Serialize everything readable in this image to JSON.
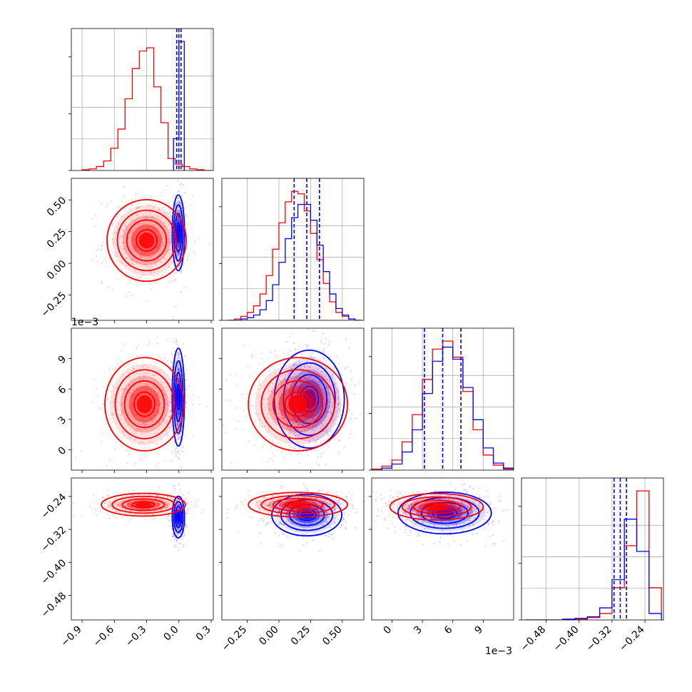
{
  "chart_data": {
    "type": "corner",
    "title": "",
    "series": [
      {
        "color": "#ff0000"
      },
      {
        "color": "#0000ff"
      }
    ],
    "quantiles_color": "#0000ff",
    "params": [
      {
        "range": [
          -1.0,
          0.32
        ],
        "ticks": [
          -0.9,
          -0.6,
          -0.3,
          0.0,
          0.3
        ],
        "tick_labels": [
          "−0.9",
          "−0.6",
          "−0.3",
          "0.0",
          "0.3"
        ],
        "offset_text": ""
      },
      {
        "range": [
          -0.45,
          0.67
        ],
        "ticks": [
          -0.25,
          0.0,
          0.25,
          0.5
        ],
        "tick_labels": [
          "−0.25",
          "0.00",
          "0.25",
          "0.50"
        ],
        "offset_text": ""
      },
      {
        "range": [
          -2.0,
          12.0
        ],
        "ticks": [
          0,
          3,
          6,
          9
        ],
        "tick_labels": [
          "0",
          "3",
          "6",
          "9"
        ],
        "offset_text": "1e−3"
      },
      {
        "range": [
          -0.54,
          -0.195
        ],
        "ticks": [
          -0.48,
          -0.4,
          -0.32,
          -0.24
        ],
        "tick_labels": [
          "−0.48",
          "−0.40",
          "−0.32",
          "−0.24"
        ],
        "offset_text": ""
      }
    ],
    "histograms": [
      {
        "param": 0,
        "series": [
          {
            "color": "#ff0000",
            "edges": [
              -0.9,
              -0.833,
              -0.767,
              -0.7,
              -0.633,
              -0.567,
              -0.5,
              -0.433,
              -0.367,
              -0.3,
              -0.233,
              -0.167,
              -0.1,
              -0.033,
              0.033,
              0.1,
              0.167,
              0.233,
              0.3
            ],
            "counts": [
              1,
              2,
              5,
              12,
              28,
              52,
              90,
              128,
              150,
              154,
              105,
              60,
              15,
              8,
              5,
              2,
              1,
              0
            ]
          },
          {
            "color": "#0000ff",
            "edges": [
              -0.05,
              0.0,
              0.05
            ],
            "counts": [
              40,
              162
            ]
          }
        ],
        "quantiles": [
          -0.02,
          0.0,
          0.02
        ]
      },
      {
        "param": 1,
        "series": [
          {
            "color": "#ff0000",
            "edges": [
              -0.4,
              -0.35,
              -0.3,
              -0.25,
              -0.2,
              -0.15,
              -0.1,
              -0.05,
              0.0,
              0.05,
              0.1,
              0.15,
              0.2,
              0.25,
              0.3,
              0.35,
              0.4,
              0.45,
              0.5,
              0.55,
              0.6,
              0.65
            ],
            "counts": [
              0,
              1,
              3,
              6,
              11,
              20,
              34,
              54,
              74,
              90,
              98,
              96,
              83,
              66,
              46,
              28,
              14,
              6,
              3,
              1,
              0
            ]
          },
          {
            "color": "#0000ff",
            "edges": [
              -0.4,
              -0.35,
              -0.3,
              -0.25,
              -0.2,
              -0.15,
              -0.1,
              -0.05,
              0.0,
              0.05,
              0.1,
              0.15,
              0.2,
              0.25,
              0.3,
              0.35,
              0.4,
              0.45,
              0.5,
              0.55,
              0.6,
              0.65
            ],
            "counts": [
              0,
              0,
              1,
              2,
              4,
              8,
              15,
              27,
              44,
              62,
              78,
              88,
              88,
              76,
              57,
              37,
              20,
              9,
              4,
              1,
              0
            ]
          }
        ],
        "quantiles": [
          0.12,
          0.22,
          0.32
        ]
      },
      {
        "param": 2,
        "series": [
          {
            "color": "#ff0000",
            "edges": [
              -2.0,
              -1.0,
              0.0,
              1.0,
              2.0,
              3.0,
              4.0,
              5.0,
              6.0,
              7.0,
              8.0,
              9.0,
              10.0,
              11.0,
              12.0
            ],
            "counts": [
              1,
              4,
              10,
              28,
              55,
              90,
              120,
              128,
              112,
              78,
              40,
              15,
              5,
              1
            ]
          },
          {
            "color": "#0000ff",
            "edges": [
              -2.0,
              -1.0,
              0.0,
              1.0,
              2.0,
              3.0,
              4.0,
              5.0,
              6.0,
              7.0,
              8.0,
              9.0,
              10.0,
              11.0,
              12.0
            ],
            "counts": [
              0,
              2,
              6,
              18,
              40,
              76,
              108,
              122,
              110,
              82,
              50,
              22,
              7,
              2
            ]
          }
        ],
        "quantiles": [
          3.2,
          5.0,
          6.8
        ]
      },
      {
        "param": 3,
        "series": [
          {
            "color": "#ff0000",
            "edges": [
              -0.53,
              -0.5,
              -0.47,
              -0.44,
              -0.41,
              -0.38,
              -0.35,
              -0.32,
              -0.29,
              -0.26,
              -0.23,
              -0.2
            ],
            "counts": [
              0,
              0,
              0,
              0,
              1,
              3,
              8,
              40,
              92,
              160,
              40,
              3
            ]
          },
          {
            "color": "#0000ff",
            "edges": [
              -0.53,
              -0.5,
              -0.47,
              -0.44,
              -0.41,
              -0.38,
              -0.35,
              -0.32,
              -0.29,
              -0.26,
              -0.23,
              -0.2
            ],
            "counts": [
              0,
              0,
              0,
              1,
              2,
              4,
              15,
              50,
              125,
              85,
              8,
              0
            ]
          }
        ],
        "quantiles": [
          -0.315,
          -0.3,
          -0.285
        ]
      }
    ],
    "joint_distributions": [
      {
        "x": 0,
        "y": 1,
        "series": [
          {
            "color": "#ff0000",
            "mean": [
              -0.3,
              0.18
            ],
            "sd": [
              0.16,
              0.14
            ],
            "rho": 0.0
          },
          {
            "color": "#0000ff",
            "mean": [
              -0.005,
              0.24
            ],
            "sd": [
              0.025,
              0.13
            ],
            "rho": 0.0
          }
        ]
      },
      {
        "x": 0,
        "y": 2,
        "series": [
          {
            "color": "#ff0000",
            "mean": [
              -0.32,
              4.5
            ],
            "sd": [
              0.16,
              2.0
            ],
            "rho": 0.0
          },
          {
            "color": "#0000ff",
            "mean": [
              -0.005,
              5.2
            ],
            "sd": [
              0.025,
              2.1
            ],
            "rho": 0.0
          }
        ]
      },
      {
        "x": 0,
        "y": 3,
        "series": [
          {
            "color": "#ff0000",
            "mean": [
              -0.33,
              -0.26
            ],
            "sd": [
              0.17,
              0.012
            ],
            "rho": 0.0
          },
          {
            "color": "#0000ff",
            "mean": [
              -0.005,
              -0.29
            ],
            "sd": [
              0.025,
              0.022
            ],
            "rho": 0.0
          }
        ]
      },
      {
        "x": 1,
        "y": 2,
        "series": [
          {
            "color": "#ff0000",
            "mean": [
              0.15,
              4.5
            ],
            "sd": [
              0.17,
              2.0
            ],
            "rho": 0.0
          },
          {
            "color": "#0000ff",
            "mean": [
              0.24,
              5.0
            ],
            "sd": [
              0.12,
              2.1
            ],
            "rho": 0.0
          }
        ]
      },
      {
        "x": 1,
        "y": 3,
        "series": [
          {
            "color": "#ff0000",
            "mean": [
              0.15,
              -0.26
            ],
            "sd": [
              0.17,
              0.013
            ],
            "rho": 0.0
          },
          {
            "color": "#0000ff",
            "mean": [
              0.22,
              -0.285
            ],
            "sd": [
              0.12,
              0.022
            ],
            "rho": 0.0
          }
        ]
      },
      {
        "x": 2,
        "y": 3,
        "series": [
          {
            "color": "#ff0000",
            "mean": [
              4.4,
              -0.265
            ],
            "sd": [
              2.0,
              0.014
            ],
            "rho": 0.0
          },
          {
            "color": "#0000ff",
            "mean": [
              5.2,
              -0.28
            ],
            "sd": [
              2.0,
              0.022
            ],
            "rho": 0.0
          }
        ]
      }
    ],
    "grid": true
  }
}
